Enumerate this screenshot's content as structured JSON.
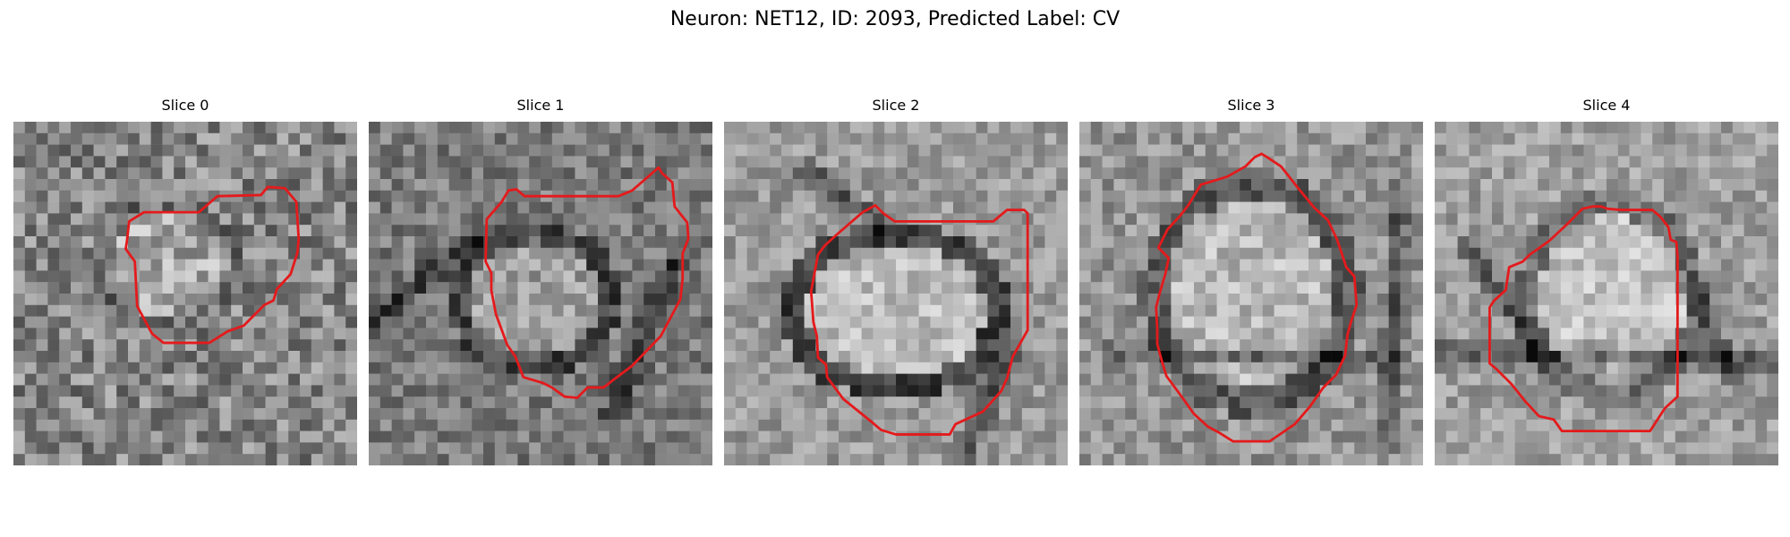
{
  "figure": {
    "title": "Neuron: NET12, ID: 2093, Predicted Label: CV",
    "outline_color": "#e41a1c",
    "colormap": "grayscale"
  },
  "panels": [
    {
      "title": "Slice 0",
      "icon": "microscopy-slice-image"
    },
    {
      "title": "Slice 1",
      "icon": "microscopy-slice-image"
    },
    {
      "title": "Slice 2",
      "icon": "microscopy-slice-image"
    },
    {
      "title": "Slice 3",
      "icon": "microscopy-slice-image"
    },
    {
      "title": "Slice 4",
      "icon": "microscopy-slice-image"
    }
  ]
}
